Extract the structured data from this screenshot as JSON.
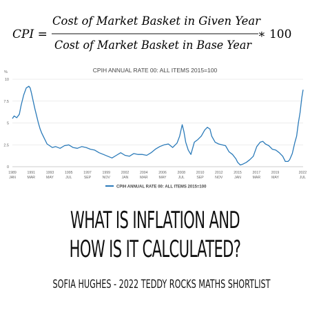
{
  "formula": {
    "lhs": "CPI =",
    "numerator": "Cost of Market Basket in Given Year",
    "denominator": "Cost of Market Basket in Base Year",
    "multiplier": "∗ 100"
  },
  "chart_data": {
    "type": "line",
    "title": "CPIH ANNUAL RATE 00: ALL ITEMS 2015=100",
    "ylabel": "%",
    "ylim": [
      0,
      10
    ],
    "yticks": [
      "0",
      "2.5",
      "5",
      "7.5",
      "10"
    ],
    "xlim": [
      1989.0,
      2022.55
    ],
    "xticks": [
      {
        "x": 1989.0,
        "year": "1989",
        "month": "JAN"
      },
      {
        "x": 1991.17,
        "year": "1991",
        "month": "MAR"
      },
      {
        "x": 1993.33,
        "year": "1993",
        "month": "MAY"
      },
      {
        "x": 1995.5,
        "year": "1995",
        "month": "JUL"
      },
      {
        "x": 1997.67,
        "year": "1997",
        "month": "SEP"
      },
      {
        "x": 1999.83,
        "year": "1999",
        "month": "NOV"
      },
      {
        "x": 2002.0,
        "year": "2002",
        "month": "JAN"
      },
      {
        "x": 2004.17,
        "year": "2004",
        "month": "MAR"
      },
      {
        "x": 2006.33,
        "year": "2006",
        "month": "MAY"
      },
      {
        "x": 2008.5,
        "year": "2008",
        "month": "JUL"
      },
      {
        "x": 2010.67,
        "year": "2010",
        "month": "SEP"
      },
      {
        "x": 2012.83,
        "year": "2012",
        "month": "NOV"
      },
      {
        "x": 2015.0,
        "year": "2015",
        "month": "JAN"
      },
      {
        "x": 2017.17,
        "year": "2017",
        "month": "MAR"
      },
      {
        "x": 2019.33,
        "year": "2019",
        "month": "MAY"
      },
      {
        "x": 2022.5,
        "year": "2022",
        "month": "JUL"
      }
    ],
    "grid": "horizontal",
    "legend_position": "bottom",
    "color": "#2a7ab9",
    "series": [
      {
        "name": "CPIH ANNUAL RATE 00: ALL ITEMS 2015=100",
        "x": [
          1989.0,
          1989.2,
          1989.5,
          1989.8,
          1990.0,
          1990.3,
          1990.6,
          1990.9,
          1991.05,
          1991.2,
          1991.4,
          1991.6,
          1991.8,
          1992.0,
          1992.2,
          1992.4,
          1992.6,
          1992.8,
          1993.0,
          1993.3,
          1993.6,
          1994.0,
          1994.5,
          1995.0,
          1995.5,
          1996.0,
          1996.5,
          1997.0,
          1997.5,
          1998.0,
          1998.5,
          1999.0,
          1999.5,
          2000.0,
          2000.5,
          2001.0,
          2001.5,
          2002.0,
          2002.5,
          2003.0,
          2003.5,
          2004.0,
          2004.5,
          2005.0,
          2005.5,
          2006.0,
          2006.5,
          2007.0,
          2007.5,
          2008.0,
          2008.3,
          2008.6,
          2008.8,
          2009.0,
          2009.3,
          2009.6,
          2010.0,
          2010.4,
          2010.8,
          2011.2,
          2011.5,
          2011.8,
          2012.0,
          2012.4,
          2012.8,
          2013.2,
          2013.6,
          2014.0,
          2014.4,
          2014.8,
          2015.0,
          2015.3,
          2015.6,
          2016.0,
          2016.4,
          2016.8,
          2017.2,
          2017.6,
          2017.9,
          2018.2,
          2018.6,
          2019.0,
          2019.4,
          2019.8,
          2020.2,
          2020.5,
          2020.8,
          2021.0,
          2021.3,
          2021.6,
          2021.8,
          2022.0,
          2022.2,
          2022.4,
          2022.55
        ],
        "y": [
          5.5,
          5.8,
          5.6,
          6.0,
          7.0,
          8.2,
          9.0,
          9.2,
          9.0,
          8.4,
          7.5,
          6.6,
          5.8,
          5.0,
          4.3,
          3.8,
          3.4,
          3.0,
          2.6,
          2.4,
          2.2,
          2.3,
          2.1,
          2.4,
          2.5,
          2.2,
          2.1,
          2.3,
          2.2,
          2.0,
          1.9,
          1.6,
          1.4,
          1.2,
          1.0,
          1.3,
          1.6,
          1.3,
          1.2,
          1.5,
          1.4,
          1.4,
          1.3,
          1.6,
          2.0,
          2.3,
          2.5,
          2.6,
          2.2,
          2.7,
          3.5,
          4.8,
          4.0,
          2.8,
          1.9,
          1.4,
          2.8,
          3.1,
          3.5,
          4.2,
          4.5,
          4.3,
          3.5,
          2.8,
          2.6,
          2.5,
          2.4,
          1.7,
          1.4,
          0.9,
          0.5,
          0.2,
          0.3,
          0.5,
          0.8,
          1.2,
          2.3,
          2.8,
          2.9,
          2.6,
          2.4,
          2.0,
          1.9,
          1.6,
          1.2,
          0.6,
          0.6,
          0.8,
          1.5,
          2.8,
          3.5,
          5.0,
          6.2,
          7.9,
          8.8
        ]
      }
    ]
  },
  "headline": {
    "line1": "WHAT IS INFLATION AND",
    "line2": "HOW IS IT CALCULATED?"
  },
  "byline": "SOFIA HUGHES - 2022 TEDDY ROCKS MATHS SHORTLIST"
}
